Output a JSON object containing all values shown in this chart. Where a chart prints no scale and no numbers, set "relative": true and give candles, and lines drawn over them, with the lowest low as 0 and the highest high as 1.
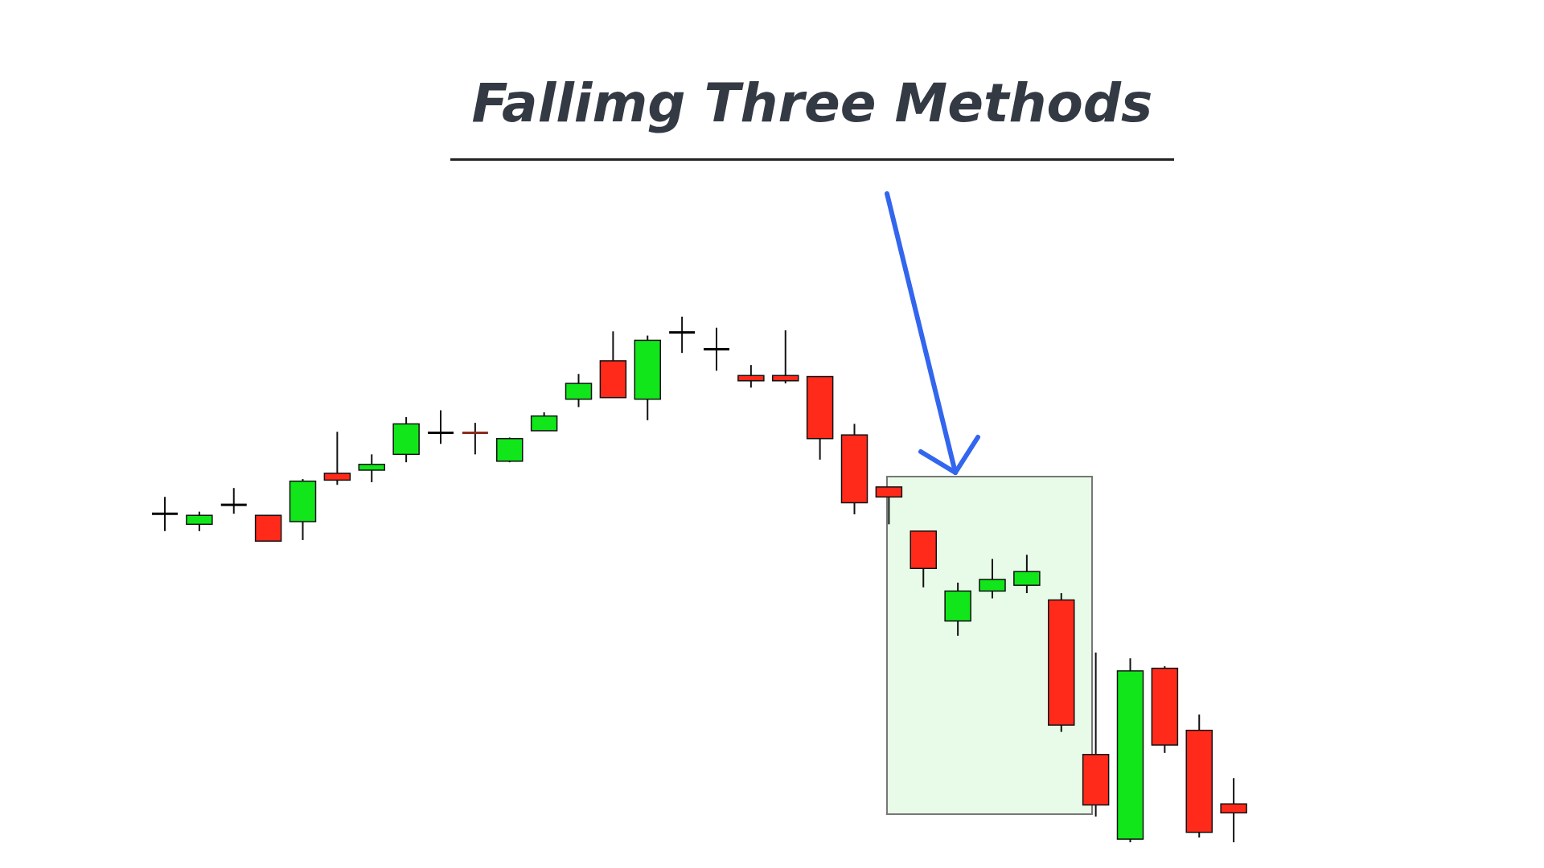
{
  "chart_data": {
    "type": "candlestick",
    "title": "Fallimg Three Methods",
    "relative": true,
    "tick_labels": false,
    "categories": [
      null,
      null,
      null,
      null,
      null,
      null,
      null,
      null,
      null,
      null,
      null,
      null,
      null,
      null,
      null,
      null,
      null,
      null,
      null,
      null,
      null,
      null,
      null,
      null,
      null,
      null,
      null,
      null,
      null,
      null,
      null,
      null
    ],
    "ohlc": [
      [
        0.625,
        0.657,
        0.592,
        0.625
      ],
      [
        0.605,
        0.629,
        0.592,
        0.622
      ],
      [
        0.642,
        0.674,
        0.625,
        0.642
      ],
      [
        0.622,
        0.622,
        0.573,
        0.573
      ],
      [
        0.61,
        0.691,
        0.575,
        0.687
      ],
      [
        0.702,
        0.781,
        0.68,
        0.689
      ],
      [
        0.708,
        0.738,
        0.685,
        0.719
      ],
      [
        0.738,
        0.809,
        0.723,
        0.796
      ],
      [
        0.779,
        0.822,
        0.758,
        0.779
      ],
      [
        0.779,
        0.798,
        0.738,
        0.775
      ],
      [
        0.725,
        0.77,
        0.723,
        0.768
      ],
      [
        0.783,
        0.818,
        0.783,
        0.811
      ],
      [
        0.843,
        0.891,
        0.828,
        0.873
      ],
      [
        0.916,
        0.972,
        0.846,
        0.846
      ],
      [
        0.843,
        0.964,
        0.803,
        0.955
      ],
      [
        0.97,
        1,
        0.931,
        0.97
      ],
      [
        0.938,
        0.979,
        0.897,
        0.938
      ],
      [
        0.888,
        0.908,
        0.865,
        0.878
      ],
      [
        0.888,
        0.974,
        0.873,
        0.878
      ],
      [
        0.886,
        0.886,
        0.728,
        0.768
      ],
      [
        0.775,
        0.796,
        0.624,
        0.646
      ],
      [
        0.676,
        0.676,
        0.605,
        0.657
      ],
      [
        0.592,
        0.592,
        0.485,
        0.521
      ],
      [
        0.421,
        0.494,
        0.393,
        0.478
      ],
      [
        0.478,
        0.539,
        0.464,
        0.5
      ],
      [
        0.489,
        0.547,
        0.474,
        0.515
      ],
      [
        0.461,
        0.474,
        0.21,
        0.223
      ],
      [
        0.167,
        0.361,
        0.049,
        0.071
      ],
      [
        0.006,
        0.35,
        0,
        0.326
      ],
      [
        0.331,
        0.335,
        0.17,
        0.185
      ],
      [
        0.213,
        0.243,
        0.009,
        0.019
      ],
      [
        0.073,
        0.122,
        0,
        0.056
      ]
    ],
    "colors": [
      "#000000",
      "#11e61a",
      "#000000",
      "#ff2a1a",
      "#11e61a",
      "#ff2a1a",
      "#11e61a",
      "#11e61a",
      "#000000",
      "#8b2a1a",
      "#11e61a",
      "#11e61a",
      "#11e61a",
      "#ff2a1a",
      "#11e61a",
      "#000000",
      "#000000",
      "#ff2a1a",
      "#ff2a1a",
      "#ff2a1a",
      "#ff2a1a",
      "#ff2a1a",
      "#ff2a1a",
      "#11e61a",
      "#11e61a",
      "#11e61a",
      "#ff2a1a",
      "#ff2a1a",
      "#11e61a",
      "#ff2a1a",
      "#ff2a1a",
      "#ff2a1a"
    ]
  }
}
